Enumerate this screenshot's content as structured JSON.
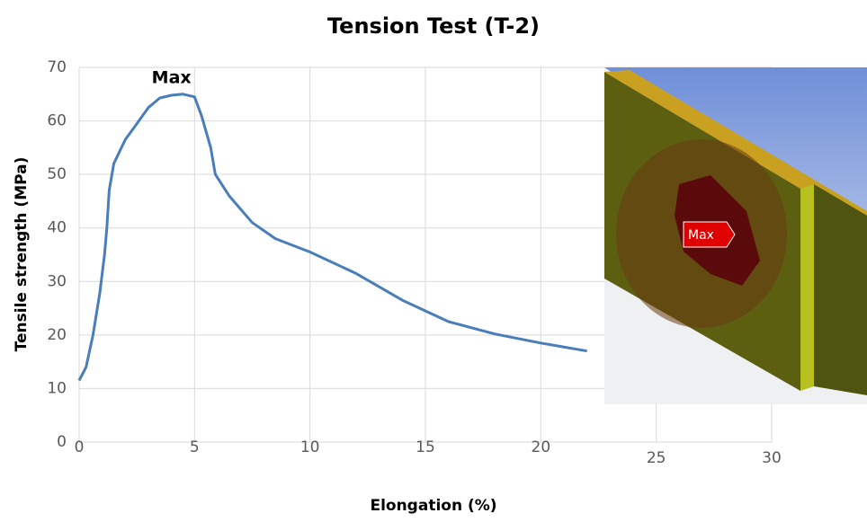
{
  "chart_data": {
    "type": "line",
    "title": "Tension Test (T-2)",
    "x_label": "Elongation (%)",
    "y_label": "Tensile strength (MPa)",
    "xlim": [
      0,
      30
    ],
    "ylim": [
      0,
      70
    ],
    "xticks": [
      0,
      5,
      10,
      15,
      20,
      25,
      30
    ],
    "yticks": [
      0,
      10,
      20,
      30,
      40,
      50,
      60,
      70
    ],
    "grid": true,
    "color": "#4a7ebb",
    "x": [
      0,
      0.3,
      0.6,
      0.9,
      1.1,
      1.2,
      1.3,
      1.5,
      2,
      2.5,
      3,
      3.5,
      4,
      4.5,
      5,
      5.3,
      5.7,
      5.9,
      6.5,
      7.5,
      8.5,
      10,
      12,
      14,
      16,
      18,
      20,
      22
    ],
    "values": [
      11.5,
      14,
      20,
      28,
      35,
      40,
      47,
      52,
      56.5,
      59.5,
      62.5,
      64.3,
      64.8,
      65,
      64.5,
      61,
      55,
      50,
      46,
      41,
      38,
      35.5,
      31.5,
      26.5,
      22.5,
      20.2,
      18.5,
      17
    ],
    "annotations": [
      {
        "text": "Max",
        "x": 4,
        "y": 68
      }
    ],
    "inset_label": "Max"
  }
}
